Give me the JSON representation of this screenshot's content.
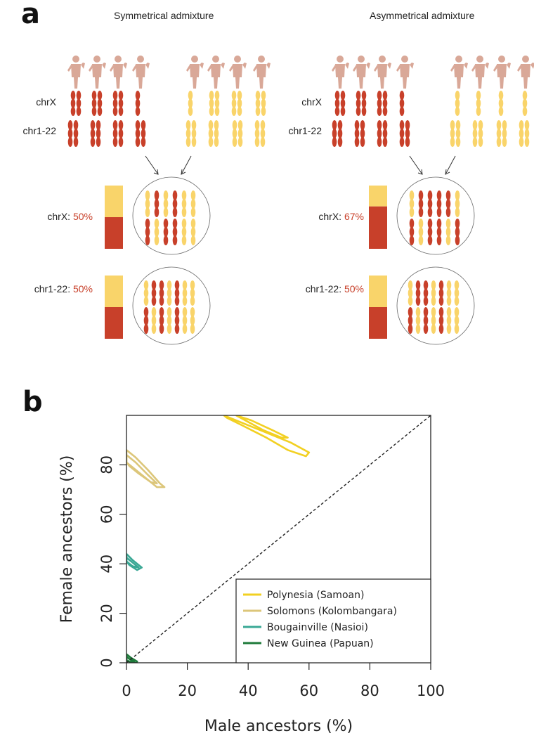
{
  "panel_a": {
    "letter": "a",
    "left": {
      "title": "Symmetrical admixture",
      "row_x": "chrX",
      "row_auto": "chr1-22",
      "x_label": "chrX:",
      "x_value": "50%",
      "x_fraction": 0.5,
      "auto_label": "chr1-22:",
      "auto_value": "50%",
      "auto_fraction": 0.5
    },
    "right": {
      "title": "Asymmetrical admixture",
      "row_x": "chrX",
      "row_auto": "chr1-22",
      "x_label": "chrX:",
      "x_value": "67%",
      "x_fraction": 0.67,
      "auto_label": "chr1-22:",
      "auto_value": "50%",
      "auto_fraction": 0.5
    },
    "colors": {
      "red": "#c8402a",
      "yellow": "#f9d46a",
      "person": "#d9a898"
    }
  },
  "panel_b": {
    "letter": "b",
    "chart_data": {
      "type": "line",
      "xlabel": "Male ancestors (%)",
      "ylabel": "Female ancestors (%)",
      "xlim": [
        0,
        100
      ],
      "ylim": [
        0,
        100
      ],
      "xticks": [
        "0",
        "20",
        "40",
        "60",
        "80",
        "100"
      ],
      "yticks": [
        "0",
        "20",
        "40",
        "60",
        "80"
      ],
      "grid": false,
      "legend_position": "bottom-right",
      "series": [
        {
          "name": "Polynesia (Samoan)",
          "color": "#f2d022",
          "contours": [
            [
              [
                32,
                100
              ],
              [
                38,
                97
              ],
              [
                46,
                93
              ],
              [
                54,
                89
              ],
              [
                60,
                85
              ],
              [
                59,
                83.5
              ],
              [
                53,
                86
              ],
              [
                46,
                91
              ],
              [
                38,
                96
              ],
              [
                33,
                99
              ],
              [
                32,
                100
              ]
            ],
            [
              [
                36,
                100
              ],
              [
                41,
                98
              ],
              [
                48,
                94
              ],
              [
                53,
                91
              ],
              [
                51,
                91
              ],
              [
                45,
                94
              ],
              [
                39,
                98
              ],
              [
                36,
                100
              ]
            ]
          ]
        },
        {
          "name": "Solomons (Kolombangara)",
          "color": "#dcc67a",
          "contours": [
            [
              [
                0,
                86
              ],
              [
                3,
                83
              ],
              [
                7,
                78
              ],
              [
                11,
                72.5
              ],
              [
                12.5,
                71
              ],
              [
                10,
                71
              ],
              [
                6,
                75
              ],
              [
                2,
                79
              ],
              [
                0,
                81
              ],
              [
                0,
                86
              ]
            ],
            [
              [
                0,
                84
              ],
              [
                3,
                81
              ],
              [
                7,
                76
              ],
              [
                10,
                72.5
              ],
              [
                8,
                73
              ],
              [
                4,
                76.5
              ],
              [
                1,
                79.5
              ],
              [
                0,
                81
              ],
              [
                0,
                84
              ]
            ]
          ]
        },
        {
          "name": "Bougainville (Nasioi)",
          "color": "#3aa895",
          "contours": [
            [
              [
                0,
                44
              ],
              [
                2,
                41.5
              ],
              [
                5,
                38.5
              ],
              [
                3.5,
                37.5
              ],
              [
                1,
                39.5
              ],
              [
                0,
                41
              ],
              [
                0,
                44
              ]
            ],
            [
              [
                0,
                42.5
              ],
              [
                2,
                40.5
              ],
              [
                4,
                38.5
              ],
              [
                2,
                39
              ],
              [
                0,
                41
              ],
              [
                0,
                42.5
              ]
            ]
          ]
        },
        {
          "name": "New Guinea (Papuan)",
          "color": "#1e7a3a",
          "contours": [
            [
              [
                0,
                3.5
              ],
              [
                1.5,
                2
              ],
              [
                3.5,
                0.5
              ],
              [
                3,
                0
              ],
              [
                1,
                0.5
              ],
              [
                0,
                1
              ],
              [
                0,
                3.5
              ]
            ],
            [
              [
                0,
                2.5
              ],
              [
                1,
                1.5
              ],
              [
                2.5,
                0.5
              ],
              [
                1,
                0.4
              ],
              [
                0,
                1
              ],
              [
                0,
                2.5
              ]
            ]
          ]
        },
        {
          "name": "",
          "color": "#222222",
          "style": "dashed",
          "x": [
            0,
            100
          ],
          "y": [
            0,
            100
          ]
        }
      ]
    }
  }
}
